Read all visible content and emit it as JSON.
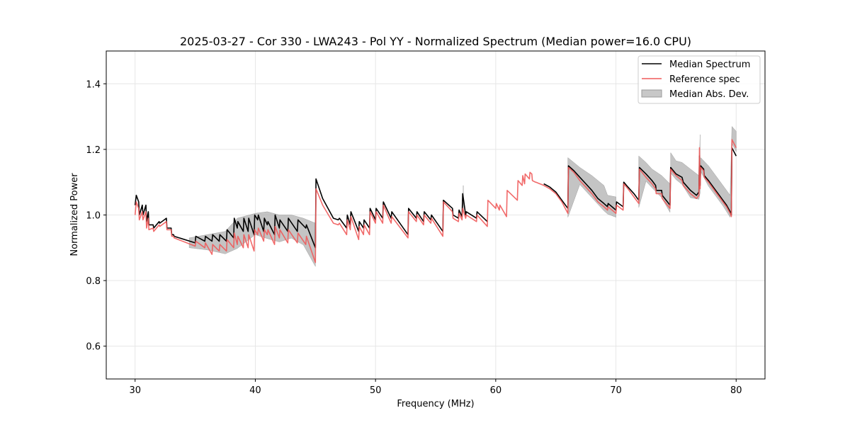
{
  "chart_data": {
    "type": "line",
    "title": "2025-03-27 - Cor 330 - LWA243 - Pol YY - Normalized Spectrum (Median power=16.0 CPU)",
    "xlabel": "Frequency (MHz)",
    "ylabel": "Normalized Power",
    "xlim": [
      27.6,
      82.4
    ],
    "ylim": [
      0.5,
      1.5
    ],
    "xticks": [
      30,
      40,
      50,
      60,
      70,
      80
    ],
    "xtick_labels": [
      "30",
      "40",
      "50",
      "60",
      "70",
      "80"
    ],
    "yticks": [
      0.6,
      0.8,
      1.0,
      1.2,
      1.4
    ],
    "ytick_labels": [
      "0.6",
      "0.8",
      "1.0",
      "1.2",
      "1.4"
    ],
    "grid": true,
    "legend_position": "top-right",
    "legend": [
      "Median Spectrum",
      "Reference spec",
      "Median Abs. Dev."
    ],
    "colors": {
      "median": "#000000",
      "reference": "#f05a5a",
      "band": "#b0b0b0",
      "overlap": "#8b0000",
      "grid": "#e6e6e6"
    },
    "series": [
      {
        "name": "Median Spectrum",
        "segments": [
          {
            "x": [
              30.0,
              30.1,
              30.3,
              30.35,
              30.6,
              30.65,
              30.9,
              30.95,
              31.1,
              31.15,
              31.5,
              31.55,
              32.0,
              32.05,
              32.6,
              32.65,
              33.0,
              33.05,
              33.2,
              33.25,
              35.0,
              35.05,
              35.8,
              35.85,
              36.4,
              36.45,
              37.0,
              37.05,
              37.6,
              37.65,
              38.2,
              38.25,
              38.5,
              38.55,
              39.0,
              39.05,
              39.4,
              39.45,
              39.9,
              39.95,
              40.2,
              40.25,
              40.7,
              40.75,
              41.0,
              41.05,
              41.6,
              41.65,
              42.0,
              42.05,
              42.7,
              42.75,
              43.5,
              43.55,
              44.2,
              44.25,
              45.0,
              45.05,
              45.6,
              46.5,
              46.9,
              47.0,
              47.6,
              47.65,
              47.9,
              47.95,
              48.6,
              48.65,
              49.0,
              49.05,
              49.5,
              49.55,
              50.0,
              50.05,
              50.6,
              50.65,
              51.3,
              51.35,
              52.7,
              52.75,
              53.4,
              53.45,
              54.0,
              54.05,
              54.6,
              54.65,
              55.6,
              55.65,
              56.4,
              56.45,
              56.9,
              56.95,
              57.2,
              57.25,
              57.5,
              57.55,
              58.4,
              58.45,
              59.3
            ],
            "y": [
              1.03,
              1.06,
              1.04,
              1.0,
              1.03,
              1.0,
              1.03,
              0.98,
              1.01,
              0.97,
              0.97,
              0.96,
              0.98,
              0.975,
              0.99,
              0.96,
              0.96,
              0.94,
              0.94,
              0.935,
              0.915,
              0.935,
              0.92,
              0.935,
              0.92,
              0.94,
              0.92,
              0.94,
              0.92,
              0.955,
              0.93,
              0.99,
              0.96,
              0.98,
              0.95,
              0.99,
              0.95,
              0.99,
              0.94,
              1.0,
              0.985,
              1.0,
              0.95,
              0.99,
              0.97,
              0.98,
              0.94,
              1.0,
              0.96,
              0.985,
              0.95,
              0.99,
              0.95,
              0.985,
              0.96,
              0.97,
              0.9,
              1.11,
              1.05,
              0.99,
              0.985,
              0.99,
              0.96,
              1.0,
              0.97,
              1.01,
              0.95,
              0.98,
              0.96,
              0.985,
              0.96,
              1.02,
              0.985,
              1.02,
              0.99,
              1.04,
              0.99,
              1.01,
              0.94,
              1.02,
              0.99,
              1.01,
              0.98,
              1.01,
              0.985,
              1.0,
              0.95,
              1.045,
              1.02,
              1.0,
              0.99,
              1.015,
              0.995,
              1.065,
              1.0,
              1.01,
              0.99,
              1.01,
              0.98
            ]
          },
          {
            "x": [
              64.0,
              64.5,
              65.0,
              65.5,
              66.0,
              66.05,
              66.5,
              67.0,
              67.5,
              68.0,
              68.5,
              69.0,
              69.3,
              69.35,
              70.0,
              70.05,
              70.6,
              70.65,
              71.0,
              71.5,
              71.9,
              71.95,
              72.5,
              73.0,
              73.3,
              73.35,
              73.8,
              73.85,
              74.5,
              74.55,
              75.0,
              75.5,
              75.6,
              76.2,
              76.7,
              76.9,
              76.95,
              77.0,
              77.05,
              77.3,
              77.35,
              77.7,
              78.0,
              78.3,
              78.6,
              78.9,
              79.2,
              79.5,
              79.6,
              79.65,
              80.0
            ],
            "y": [
              1.095,
              1.085,
              1.07,
              1.045,
              1.02,
              1.15,
              1.135,
              1.115,
              1.095,
              1.075,
              1.05,
              1.035,
              1.025,
              1.035,
              1.015,
              1.04,
              1.025,
              1.1,
              1.085,
              1.065,
              1.045,
              1.145,
              1.125,
              1.105,
              1.09,
              1.075,
              1.075,
              1.06,
              1.03,
              1.145,
              1.125,
              1.115,
              1.1,
              1.075,
              1.06,
              1.07,
              1.18,
              1.09,
              1.15,
              1.14,
              1.12,
              1.105,
              1.09,
              1.075,
              1.06,
              1.045,
              1.03,
              1.01,
              1.0,
              1.205,
              1.18
            ]
          }
        ]
      },
      {
        "name": "Reference spec",
        "segments": [
          {
            "x": [
              30.0,
              30.1,
              30.3,
              30.35,
              30.6,
              30.65,
              30.9,
              30.95,
              31.1,
              31.15,
              31.5,
              31.55,
              32.0,
              32.05,
              32.6,
              32.65,
              33.0,
              33.05,
              33.2,
              33.25,
              35.0,
              35.05,
              35.8,
              35.85,
              36.4,
              36.45,
              37.0,
              37.05,
              37.6,
              37.65,
              38.2,
              38.25,
              38.5,
              38.55,
              39.0,
              39.05,
              39.4,
              39.45,
              39.9,
              39.95,
              40.2,
              40.25,
              40.7,
              40.75,
              41.0,
              41.05,
              41.6,
              41.65,
              42.0,
              42.05,
              42.7,
              42.75,
              43.5,
              43.55,
              44.2,
              44.25,
              45.0,
              45.05,
              45.6,
              46.5,
              46.9,
              47.0,
              47.6,
              47.65,
              47.9,
              47.95,
              48.6,
              48.65,
              49.0,
              49.05,
              49.5,
              49.55,
              50.0,
              50.05,
              50.6,
              50.65,
              51.3,
              51.35,
              52.7,
              52.75,
              53.4,
              53.45,
              54.0,
              54.05,
              54.6,
              54.65,
              55.6,
              55.65,
              56.4,
              56.45,
              56.9,
              56.95,
              57.2,
              57.25,
              57.5,
              57.55,
              58.4,
              58.45,
              59.3,
              59.35,
              60.0,
              60.05,
              60.3,
              60.35,
              60.9,
              60.95,
              61.8,
              61.85,
              62.2,
              62.25,
              62.4,
              62.45,
              62.8,
              62.85,
              63.0,
              63.05,
              63.3,
              63.35,
              64.0,
              64.5,
              65.0,
              65.5,
              66.0,
              66.05,
              66.5,
              67.0,
              67.5,
              68.0,
              68.5,
              69.0,
              69.3,
              69.35,
              70.0,
              70.05,
              70.6,
              70.65,
              71.0,
              71.5,
              71.9,
              71.95,
              72.5,
              73.0,
              73.3,
              73.35,
              73.8,
              73.85,
              74.5,
              74.55,
              75.0,
              75.5,
              75.6,
              76.2,
              76.7,
              76.9,
              76.95,
              77.0,
              77.05,
              77.3,
              77.35,
              77.7,
              78.0,
              78.3,
              78.6,
              78.9,
              79.2,
              79.5,
              79.6,
              79.65,
              80.0
            ],
            "y": [
              1.0,
              1.04,
              1.02,
              0.985,
              1.01,
              0.985,
              1.01,
              0.96,
              0.99,
              0.955,
              0.96,
              0.95,
              0.97,
              0.965,
              0.98,
              0.955,
              0.955,
              0.935,
              0.935,
              0.93,
              0.905,
              0.92,
              0.9,
              0.915,
              0.88,
              0.91,
              0.89,
              0.91,
              0.89,
              0.925,
              0.9,
              0.945,
              0.91,
              0.935,
              0.9,
              0.94,
              0.9,
              0.94,
              0.89,
              0.955,
              0.94,
              0.96,
              0.92,
              0.955,
              0.94,
              0.955,
              0.91,
              0.965,
              0.93,
              0.955,
              0.915,
              0.955,
              0.915,
              0.945,
              0.91,
              0.935,
              0.855,
              1.08,
              1.03,
              0.975,
              0.97,
              0.975,
              0.94,
              0.985,
              0.955,
              0.995,
              0.925,
              0.965,
              0.94,
              0.97,
              0.94,
              1.01,
              0.975,
              1.01,
              0.975,
              1.03,
              0.975,
              0.995,
              0.93,
              1.01,
              0.98,
              1.0,
              0.97,
              1.0,
              0.975,
              0.99,
              0.935,
              1.04,
              1.01,
              0.99,
              0.98,
              1.005,
              0.985,
              1.02,
              0.99,
              1.0,
              0.98,
              1.0,
              0.965,
              1.045,
              1.02,
              1.035,
              1.015,
              1.03,
              0.995,
              1.075,
              1.045,
              1.105,
              1.09,
              1.12,
              1.095,
              1.125,
              1.11,
              1.13,
              1.125,
              1.105,
              1.1,
              1.1,
              1.09,
              1.08,
              1.065,
              1.04,
              1.005,
              1.145,
              1.13,
              1.105,
              1.085,
              1.065,
              1.04,
              1.025,
              1.015,
              1.025,
              1.005,
              1.03,
              1.015,
              1.095,
              1.08,
              1.055,
              1.035,
              1.14,
              1.115,
              1.095,
              1.08,
              1.065,
              1.065,
              1.05,
              1.02,
              1.14,
              1.12,
              1.105,
              1.09,
              1.065,
              1.05,
              1.06,
              1.205,
              1.08,
              1.145,
              1.135,
              1.115,
              1.1,
              1.085,
              1.07,
              1.055,
              1.04,
              1.025,
              1.005,
              0.995,
              1.23,
              1.205
            ]
          }
        ]
      }
    ],
    "band": {
      "name": "Median Abs. Dev.",
      "regions": [
        {
          "x": [
            34.5,
            36.0,
            37.5,
            38.5,
            40.0,
            41.0,
            42.0,
            43.0,
            44.0,
            45.0
          ],
          "y": [
            0.93,
            0.94,
            0.95,
            0.99,
            1.005,
            1.01,
            1.0,
            1.0,
            0.99,
            0.975
          ]
        },
        {
          "x": [
            57.3
          ],
          "y": [
            1.09
          ]
        },
        {
          "x": [
            66.0,
            67.0,
            68.0,
            69.0,
            69.3,
            70.0
          ],
          "y": [
            1.175,
            1.145,
            1.12,
            1.09,
            1.06,
            1.055
          ]
        },
        {
          "x": [
            71.9,
            72.5,
            73.0,
            73.8,
            74.5
          ],
          "y": [
            1.18,
            1.16,
            1.14,
            1.12,
            1.095
          ]
        },
        {
          "x": [
            74.55,
            75.0,
            75.5,
            76.2,
            76.9,
            77.0
          ],
          "y": [
            1.19,
            1.165,
            1.16,
            1.14,
            1.12,
            1.245
          ]
        },
        {
          "x": [
            77.05,
            77.7,
            78.3,
            78.9,
            79.5,
            79.65,
            80.0
          ],
          "y": [
            1.175,
            1.15,
            1.12,
            1.09,
            1.06,
            1.27,
            1.255
          ]
        }
      ]
    }
  }
}
